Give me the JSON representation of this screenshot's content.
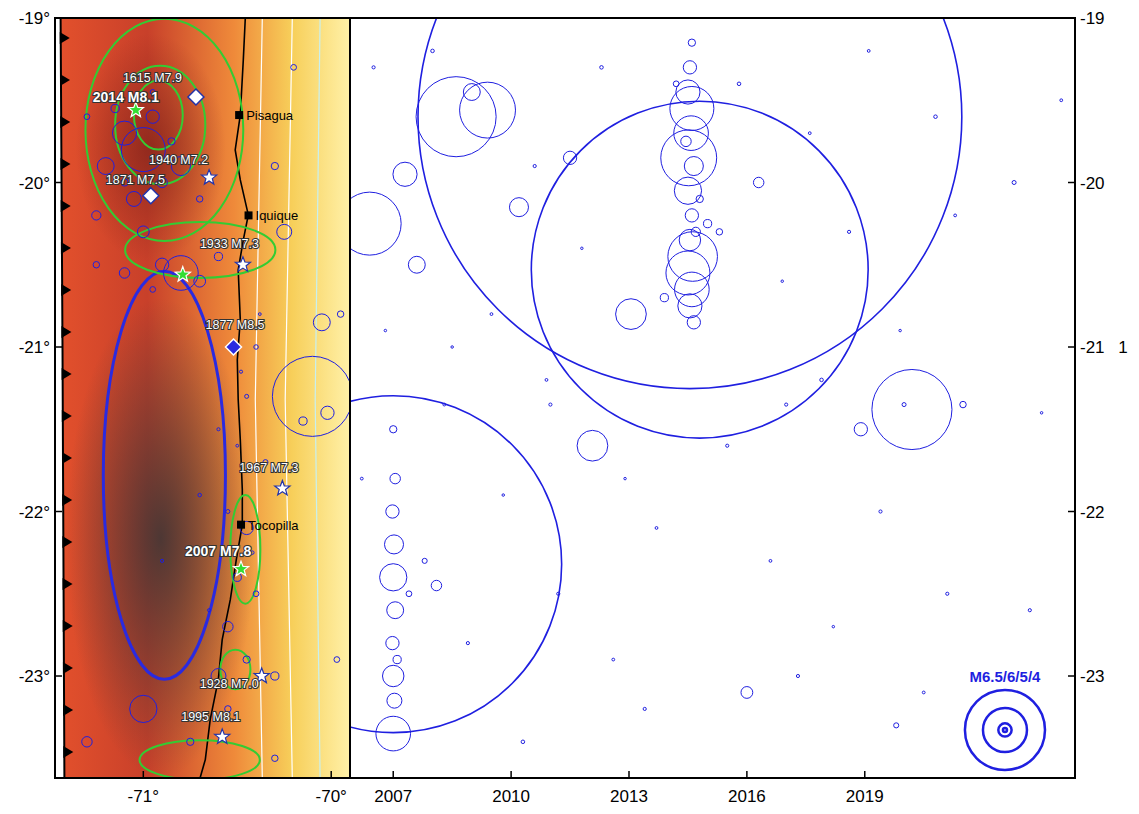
{
  "chart_data": [
    {
      "type": "scatter",
      "color": "#1f1fe0",
      "marker": "circle",
      "xlim": [
        -71.47,
        -69.9
      ],
      "ylim": [
        -23.62,
        -19
      ],
      "xticks": [
        {
          "value": -71,
          "label": "-71°"
        },
        {
          "value": -70,
          "label": "-70°"
        }
      ],
      "yticks": [
        {
          "value": -19,
          "label": "-19°"
        },
        {
          "value": -20,
          "label": "-20°"
        },
        {
          "value": -21,
          "label": "-21°"
        },
        {
          "value": -22,
          "label": "-22°"
        },
        {
          "value": -23,
          "label": "-23°"
        }
      ],
      "x": [
        -71.1,
        -71.0,
        -70.95,
        -71.2,
        -70.9,
        -71.05,
        -70.85,
        -71.15,
        -70.8,
        -71.25,
        -71.0,
        -70.7,
        -71.3,
        -70.95,
        -71.1,
        -70.8,
        -70.9,
        -71.1,
        -70.6,
        -71.25,
        -70.7,
        -70.95,
        -70.1,
        -70.05,
        -70.02,
        -70.15,
        -70.45,
        -70.5,
        -70.55,
        -70.45,
        -70.4,
        -70.6,
        -70.55,
        -71.0,
        -71.3,
        -70.75,
        -70.3,
        -70.3,
        -70.25,
        -70.3,
        -70.2,
        -70.35,
        -70.45,
        -70.4,
        -70.6,
        -70.7,
        -70.9,
        -70.55,
        -69.95,
        -69.97,
        -70.5,
        -70.42,
        -70.65,
        -70.38,
        -70.48
      ],
      "values": [
        -19.7,
        -19.8,
        -19.6,
        -19.9,
        -20.0,
        -20.1,
        -19.75,
        -19.55,
        -19.9,
        -20.2,
        -20.3,
        -20.1,
        -19.6,
        -19.45,
        -20.0,
        -20.55,
        -20.5,
        -20.55,
        -20.45,
        -20.5,
        -20.6,
        -20.65,
        -21.3,
        -20.85,
        -21.4,
        -21.45,
        -22.1,
        -22.4,
        -22.7,
        -22.9,
        -22.5,
        -23.0,
        -23.2,
        -23.2,
        -23.4,
        -23.4,
        -23.0,
        -23.5,
        -20.3,
        -19.9,
        -19.3,
        -21.7,
        -21.3,
        -21.0,
        -21.5,
        -21.9,
        -22.3,
        -22.0,
        -20.8,
        -22.9,
        -21.6,
        -22.25,
        -22.6,
        -20.8,
        -21.15
      ],
      "magnitudes": [
        5.5,
        6.0,
        5.0,
        5.2,
        4.8,
        5.1,
        4.5,
        4.6,
        5.3,
        4.7,
        4.9,
        4.4,
        4.3,
        4.2,
        4.5,
        5.8,
        5.0,
        4.8,
        4.6,
        4.4,
        4.9,
        4.3,
        6.5,
        5.2,
        5.0,
        4.6,
        5.0,
        4.6,
        4.8,
        4.5,
        4.3,
        5.1,
        4.4,
        5.6,
        4.8,
        4.5,
        4.6,
        4.4,
        5.1,
        4.5,
        4.3,
        4.2,
        4.0,
        4.1,
        3.8,
        3.9,
        3.8,
        4.0,
        4.4,
        4.3,
        3.7,
        3.9,
        3.8,
        3.7,
        3.8
      ],
      "coastline": {
        "lon": [
          -70.457,
          -70.468,
          -70.484,
          -70.511,
          -70.484,
          -70.441,
          -70.468,
          -70.495,
          -70.484,
          -70.5,
          -70.495,
          -70.484,
          -70.473,
          -70.473,
          -70.505,
          -70.537,
          -70.58,
          -70.601,
          -70.644,
          -70.67,
          -70.697
        ],
        "lat": [
          -19.0,
          -19.255,
          -19.589,
          -19.802,
          -19.984,
          -20.197,
          -20.349,
          -20.531,
          -20.835,
          -21.078,
          -21.321,
          -21.564,
          -21.868,
          -22.08,
          -22.293,
          -22.536,
          -22.779,
          -23.022,
          -23.265,
          -23.508,
          -23.617
        ]
      },
      "trench": {
        "lon": [
          -71.44,
          -71.43,
          -71.42
        ],
        "lat": [
          -19,
          -21,
          -23.62
        ]
      },
      "slab_contours": [
        {
          "color": "#ffffff",
          "lon": [
            -70.367,
            -70.404,
            -70.367
          ],
          "lat": [
            -19,
            -21.32,
            -23.62
          ]
        },
        {
          "color": "#ffffff",
          "lon": [
            -70.207,
            -70.245,
            -70.207
          ],
          "lat": [
            -19,
            -21.32,
            -23.62
          ]
        },
        {
          "color": "#c8f0f0",
          "lon": [
            -70.059,
            -70.085,
            -70.059
          ],
          "lat": [
            -19,
            -21.32,
            -23.62
          ]
        }
      ],
      "rupture_zones": [
        {
          "color": "#2a2ae0",
          "lon": -70.888,
          "lat": -21.78,
          "rx": 0.325,
          "ry": 1.24
        },
        {
          "color": "#33cc33",
          "lon": -70.888,
          "lat": -19.68,
          "rx": 0.42,
          "ry": 0.675
        },
        {
          "color": "#33cc33",
          "lon": -70.91,
          "lat": -19.65,
          "rx": 0.24,
          "ry": 0.36
        },
        {
          "color": "#33cc33",
          "lon": -70.92,
          "lat": -19.59,
          "rx": 0.13,
          "ry": 0.21
        },
        {
          "color": "#33cc33",
          "lon": -70.697,
          "lat": -20.41,
          "rx": 0.4,
          "ry": 0.17
        },
        {
          "color": "#33cc33",
          "lon": -70.457,
          "lat": -22.23,
          "rx": 0.08,
          "ry": 0.33
        },
        {
          "color": "#33cc33",
          "lon": -70.51,
          "lat": -22.96,
          "rx": 0.08,
          "ry": 0.12
        },
        {
          "color": "#33cc33",
          "lon": -70.7,
          "lat": -23.51,
          "rx": 0.32,
          "ry": 0.12
        }
      ],
      "epicenters": [
        {
          "label": "1615 M7.9",
          "lon": -70.72,
          "lat": -19.48,
          "marker": "diamond",
          "color": "#ffffff"
        },
        {
          "label": "2014 M8.1",
          "lon": -71.04,
          "lat": -19.56,
          "marker": "star",
          "color": "#33dd33"
        },
        {
          "label": "1940 M7.2",
          "lon": -70.65,
          "lat": -19.97,
          "marker": "star",
          "color": "#ffffff"
        },
        {
          "label": "1871 M7.5",
          "lon": -70.96,
          "lat": -20.08,
          "marker": "diamond",
          "color": "#ffffff"
        },
        {
          "label": "1933 M7.3",
          "lon": -70.47,
          "lat": -20.5,
          "marker": "star",
          "color": "#ffffff"
        },
        {
          "lon": -70.79,
          "lat": -20.56,
          "marker": "star",
          "color": "#33dd33"
        },
        {
          "label": "1877 M8.5",
          "lon": -70.52,
          "lat": -21.0,
          "marker": "diamond",
          "color": "#2a2ae0"
        },
        {
          "label": "1967 M7.3",
          "lon": -70.26,
          "lat": -21.86,
          "marker": "star",
          "color": "#ffffff"
        },
        {
          "label": "2007 M7.8",
          "lon": -70.48,
          "lat": -22.35,
          "marker": "star",
          "color": "#33dd33"
        },
        {
          "label": "1928 M7.0",
          "lon": -70.37,
          "lat": -23.0,
          "marker": "star",
          "color": "#ffffff"
        },
        {
          "label": "1995 M8.1",
          "lon": -70.58,
          "lat": -23.37,
          "marker": "star",
          "color": "#ffffff"
        }
      ],
      "cities": [
        {
          "label": "Pisagua",
          "lon": -70.49,
          "lat": -19.59
        },
        {
          "label": "Iquique",
          "lon": -70.44,
          "lat": -20.2
        },
        {
          "label": "Tocopilla",
          "lon": -70.48,
          "lat": -22.08
        }
      ]
    },
    {
      "type": "scatter",
      "color": "#1f1fe0",
      "marker": "circle",
      "xlim": [
        2005.9,
        2024.35
      ],
      "ylim": [
        -23.62,
        -19
      ],
      "xticks": [
        2007,
        2010,
        2013,
        2016,
        2019
      ],
      "yticks": [
        -19,
        -20,
        -21,
        -22,
        -23
      ],
      "x": [
        2014.55,
        2014.8,
        2007.0,
        2008.6,
        2009.4,
        2009.0,
        2020.2,
        2012.07,
        2013.05,
        2006.4,
        2007.3,
        2010.2,
        2007.6,
        2011.5,
        2016.3,
        2016.0,
        2018.9,
        2008.1,
        2019.8,
        2014.6,
        2014.55,
        2014.5,
        2014.6,
        2014.58,
        2014.52,
        2014.65,
        2014.5,
        2014.6,
        2014.55,
        2014.62,
        2014.5,
        2014.6,
        2014.55,
        2014.65,
        2014.7,
        2014.45,
        2014.8,
        2015.0,
        2015.3,
        2013.9,
        2014.2,
        2007.0,
        2007.05,
        2006.98,
        2007.02,
        2007.0,
        2007.05,
        2006.98,
        2007.0,
        2007.03,
        2007.0,
        2007.1,
        2007.4,
        2007.8,
        2006.5,
        2006.8,
        2006.2,
        2008.0,
        2008.5,
        2008.9,
        2009.5,
        2009.8,
        2010.3,
        2010.6,
        2010.9,
        2011.2,
        2011.8,
        2012.3,
        2012.6,
        2012.9,
        2013.4,
        2013.7,
        2015.5,
        2015.8,
        2016.6,
        2016.9,
        2017.3,
        2017.6,
        2017.9,
        2018.2,
        2018.6,
        2019.1,
        2019.4,
        2019.9,
        2020.5,
        2020.8,
        2021.1,
        2021.3,
        2021.5,
        2020.0,
        2017.0,
        2011.0,
        2008.3,
        2023.5,
        2022.8,
        2023.2,
        2024.0
      ],
      "values": [
        -19.6,
        -20.53,
        -22.32,
        -19.6,
        -19.56,
        -19.45,
        -21.38,
        -21.6,
        -20.8,
        -20.25,
        -19.95,
        -20.15,
        -20.5,
        -19.85,
        -20.0,
        -23.1,
        -21.5,
        -22.45,
        -23.3,
        -19.15,
        -19.3,
        -19.45,
        -19.55,
        -19.7,
        -19.85,
        -19.9,
        -20.05,
        -20.2,
        -20.35,
        -20.45,
        -20.55,
        -20.65,
        -20.75,
        -20.85,
        -20.3,
        -19.75,
        -20.1,
        -20.25,
        -20.3,
        -20.7,
        -19.4,
        -21.5,
        -21.8,
        -22.0,
        -22.2,
        -22.4,
        -22.6,
        -22.8,
        -23.0,
        -23.15,
        -23.35,
        -22.9,
        -22.5,
        -22.3,
        -19.3,
        -20.9,
        -21.8,
        -19.2,
        -21.0,
        -22.8,
        -20.8,
        -21.9,
        -23.4,
        -19.9,
        -21.2,
        -22.5,
        -20.4,
        -19.3,
        -22.9,
        -21.8,
        -23.2,
        -22.1,
        -21.6,
        -19.4,
        -22.3,
        -20.6,
        -23.0,
        -19.7,
        -21.2,
        -22.7,
        -20.3,
        -19.2,
        -22.0,
        -20.9,
        -23.1,
        -19.6,
        -22.5,
        -20.2,
        -21.35,
        -21.35,
        -21.35,
        -21.35,
        -21.35,
        -21.4,
        -20.0,
        -22.6,
        -19.5
      ],
      "magnitudes": [
        8.1,
        7.7,
        7.7,
        6.5,
        6.2,
        5.2,
        6.5,
        5.7,
        5.7,
        6.3,
        5.5,
        5.3,
        5.2,
        5.0,
        4.8,
        4.9,
        5.0,
        4.8,
        4.2,
        4.5,
        5.0,
        5.5,
        6.0,
        5.8,
        6.2,
        5.3,
        5.6,
        5.0,
        5.4,
        6.1,
        6.0,
        5.8,
        5.5,
        5.0,
        4.7,
        4.8,
        4.5,
        4.6,
        4.4,
        4.6,
        4.3,
        4.5,
        4.8,
        5.0,
        5.3,
        5.6,
        5.2,
        5.0,
        5.4,
        5.1,
        5.8,
        4.6,
        4.3,
        4.2,
        3.8,
        3.6,
        3.7,
        3.9,
        3.6,
        3.8,
        3.7,
        3.6,
        3.9,
        3.8,
        3.7,
        3.8,
        3.6,
        3.9,
        3.7,
        3.6,
        3.8,
        3.7,
        3.8,
        3.9,
        3.7,
        3.6,
        3.8,
        3.7,
        3.9,
        3.6,
        3.8,
        3.7,
        3.8,
        3.6,
        3.7,
        3.9,
        3.8,
        3.7,
        4.4,
        4.0,
        3.8,
        3.8,
        3.7,
        3.6,
        4.0,
        3.8,
        3.7
      ],
      "size_legend": {
        "label": "M6.5/6/5/4",
        "values": [
          6.5,
          6,
          5,
          4
        ]
      },
      "annotation": "1"
    }
  ]
}
